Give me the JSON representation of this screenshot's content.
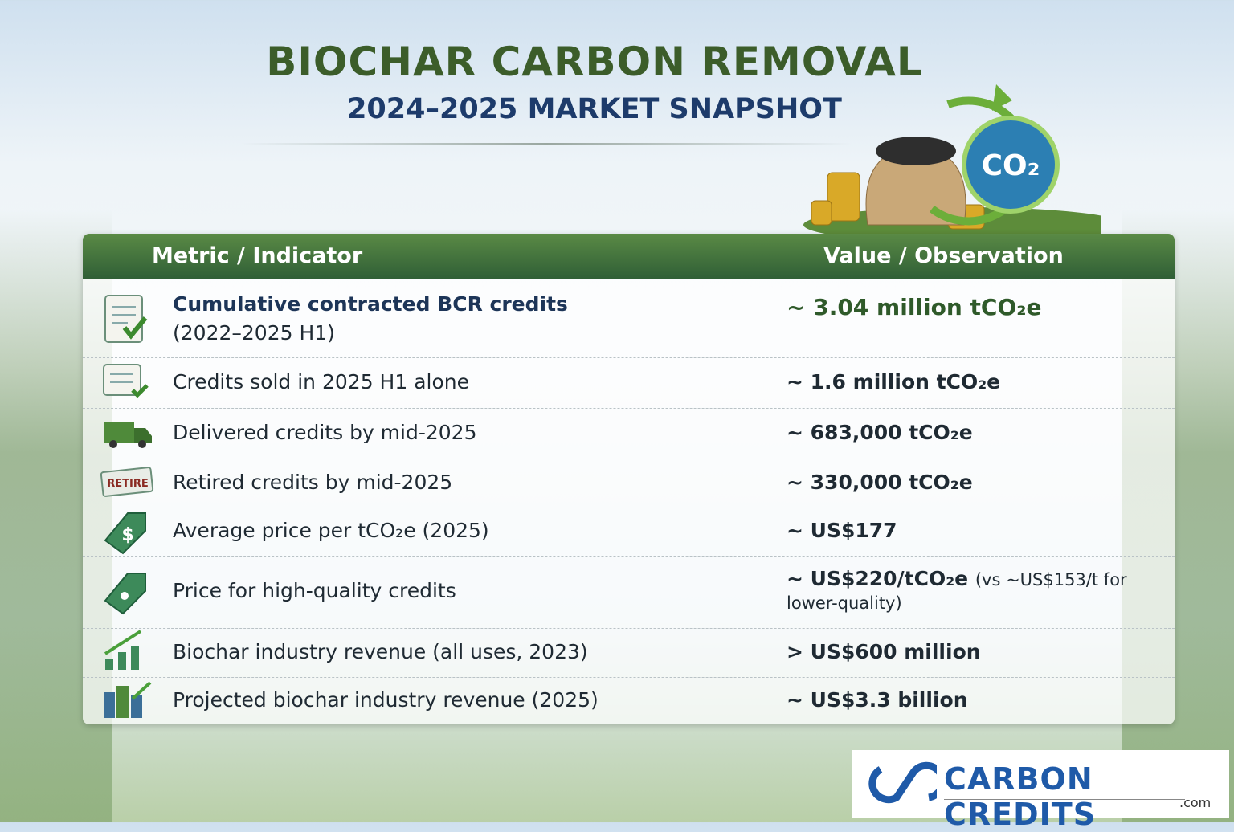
{
  "header": {
    "title": "BIOCHAR CARBON REMOVAL",
    "subtitle": "2024–2025 MARKET SNAPSHOT"
  },
  "illustration": {
    "badge": "CO₂"
  },
  "table": {
    "headers": [
      "Metric / Indicator",
      "Value / Observation"
    ],
    "rows": [
      {
        "metric": "Cumulative contracted BCR credits",
        "metric_note": "(2022–2025 H1)",
        "value": "~ 3.04 million tCO₂e"
      },
      {
        "metric": "Credits sold in 2025 H1 alone",
        "value": "~ 1.6 million tCO₂e"
      },
      {
        "metric": "Delivered credits by mid-2025",
        "value": "~ 683,000 tCO₂e"
      },
      {
        "metric": "Retired credits by mid-2025",
        "icon_text": "RETIRE",
        "value": "~ 330,000 tCO₂e"
      },
      {
        "metric": "Average price per tCO₂e (2025)",
        "value": "~ US$177"
      },
      {
        "metric": "Price for high-quality credits",
        "value": "~ US$220/tCO₂e",
        "value_note": "(vs ~US$153/t for lower-quality)"
      },
      {
        "metric": "Biochar industry revenue (all uses, 2023)",
        "value": "> US$600 million"
      },
      {
        "metric": "Projected biochar industry revenue (2025)",
        "value": "~ US$3.3 billion"
      }
    ]
  },
  "logo": {
    "name": "CARBON CREDITS",
    "domain": ".com"
  }
}
